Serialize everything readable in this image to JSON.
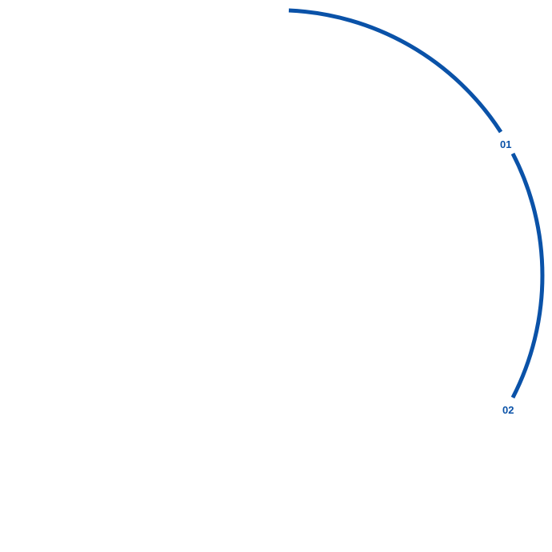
{
  "colors": {
    "arc": "#0a52a8"
  },
  "markers": [
    {
      "label": "01"
    },
    {
      "label": "02"
    }
  ]
}
